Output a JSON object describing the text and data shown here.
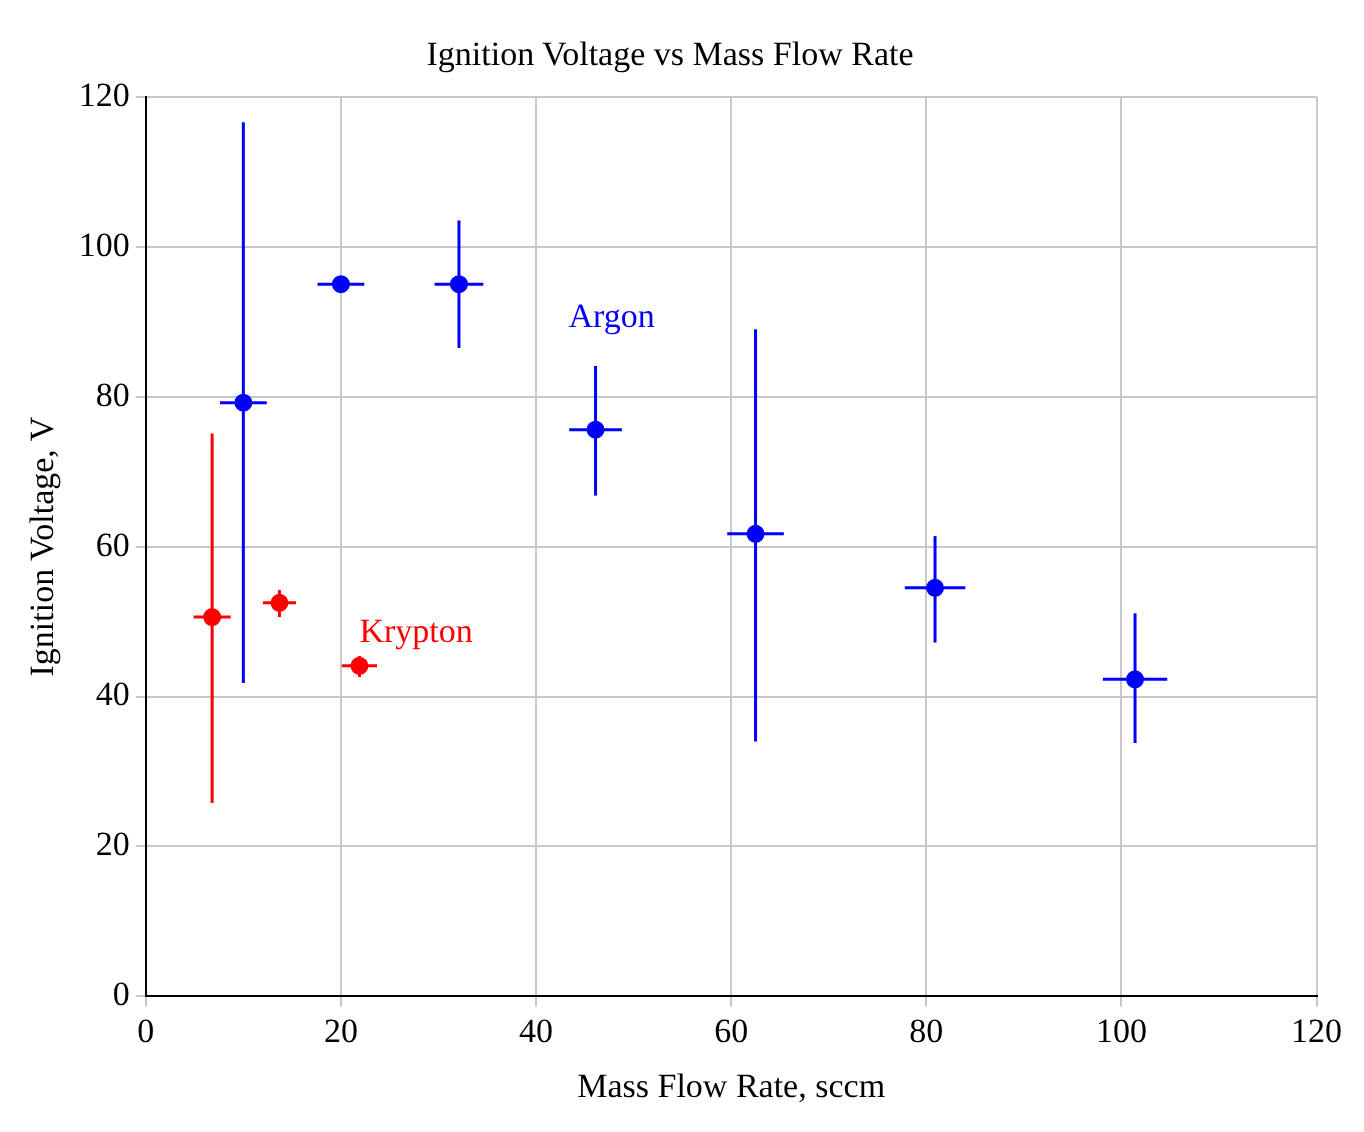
{
  "chart_data": {
    "type": "scatter",
    "title": "Ignition Voltage vs Mass Flow Rate",
    "xlabel": "Mass Flow Rate, sccm",
    "ylabel": "Ignition Voltage, V",
    "xlim": [
      0,
      120
    ],
    "xticks": [
      0,
      20,
      40,
      60,
      80,
      100,
      120
    ],
    "ylim": [
      0,
      120
    ],
    "yticks": [
      0,
      20,
      40,
      60,
      80,
      100,
      120
    ],
    "grid": true,
    "legend": false,
    "marker": "circle",
    "series": [
      {
        "name": "Argon",
        "color": "#0000ff",
        "x": [
          10,
          20,
          32.1,
          46.1,
          62.5,
          80.9,
          101.4
        ],
        "values": [
          79.2,
          95,
          95,
          75.6,
          61.7,
          54.5,
          42.3
        ],
        "errors": [
          [
            41.8,
            116.6
          ],
          null,
          [
            86.5,
            103.5
          ],
          [
            66.8,
            84.1
          ],
          [
            34,
            89
          ],
          [
            47.2,
            61.4
          ],
          [
            33.8,
            51.1
          ]
        ],
        "xerrors": [
          2.4,
          2.4,
          2.5,
          2.7,
          2.9,
          3.1,
          3.3
        ]
      },
      {
        "name": "Krypton",
        "color": "#ff0000",
        "x": [
          6.8,
          13.7,
          21.9
        ],
        "values": [
          50.6,
          52.5,
          44.1
        ],
        "errors": [
          [
            25.8,
            75.1
          ],
          [
            50.6,
            54.2
          ],
          [
            42.6,
            45.4
          ]
        ],
        "xerrors": [
          1.9,
          1.7,
          1.8
        ]
      }
    ]
  }
}
